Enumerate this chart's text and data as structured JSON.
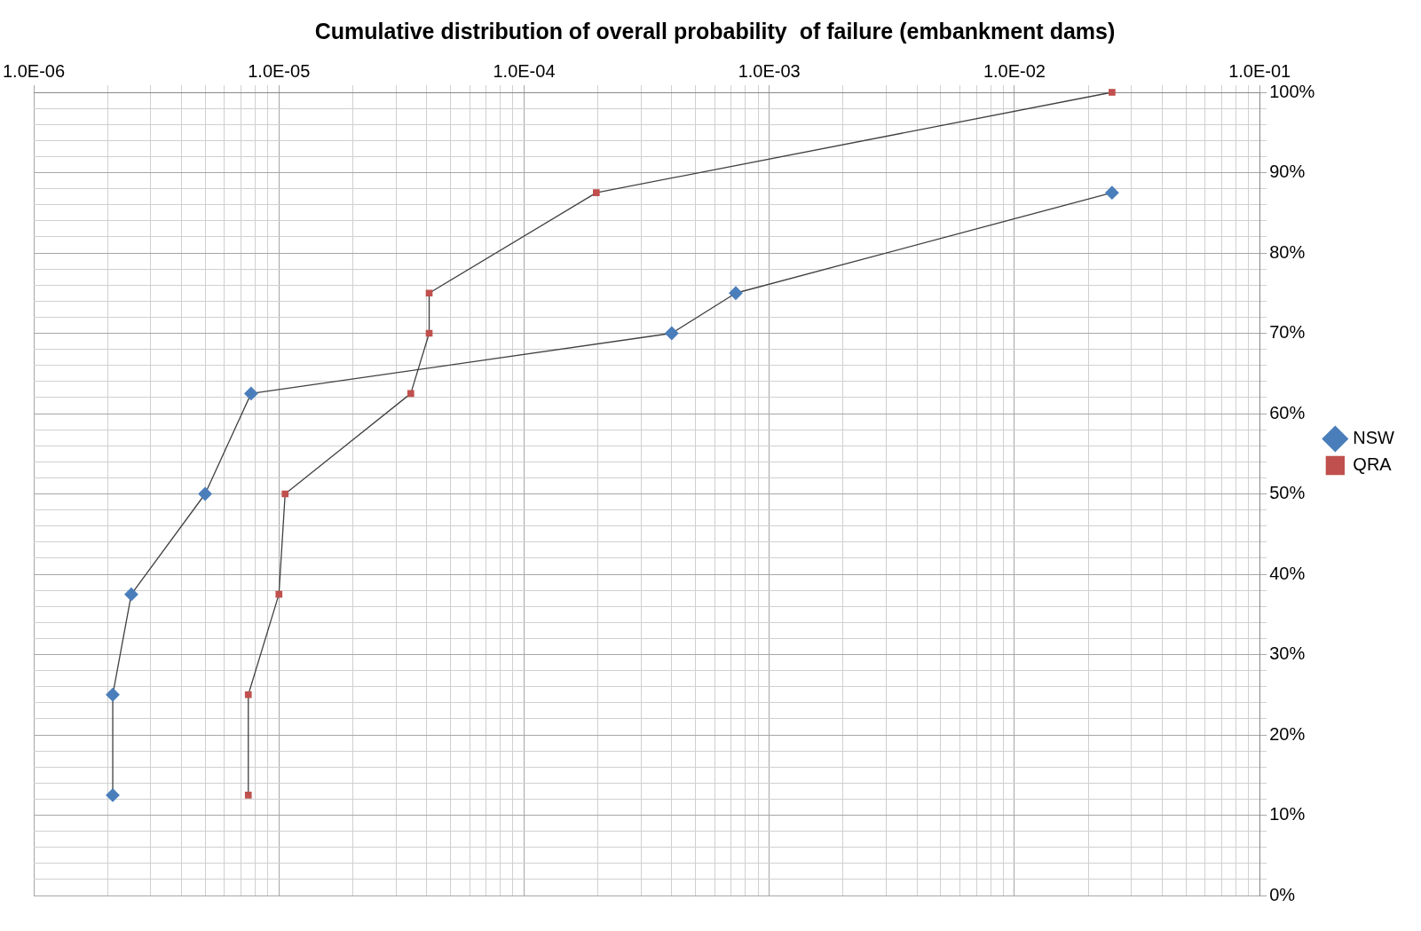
{
  "chart_data": {
    "type": "line",
    "title": "Cumulative distribution of overall probability  of failure (embankment dams)",
    "log": "x",
    "grid": true,
    "legend": "right",
    "line_style": "solid",
    "xlim": [
      1e-06,
      0.1
    ],
    "xticks": [
      {
        "value": 1e-06,
        "label": "1.0E-06"
      },
      {
        "value": 2e-06,
        "label": null
      },
      {
        "value": 3e-06,
        "label": null
      },
      {
        "value": 4e-06,
        "label": null
      },
      {
        "value": 5e-06,
        "label": null
      },
      {
        "value": 6e-06,
        "label": null
      },
      {
        "value": 7e-06,
        "label": null
      },
      {
        "value": 8e-06,
        "label": null
      },
      {
        "value": 9e-06,
        "label": null
      },
      {
        "value": 1e-05,
        "label": "1.0E-05"
      },
      {
        "value": 2e-05,
        "label": null
      },
      {
        "value": 3e-05,
        "label": null
      },
      {
        "value": 4e-05,
        "label": null
      },
      {
        "value": 5e-05,
        "label": null
      },
      {
        "value": 6e-05,
        "label": null
      },
      {
        "value": 7e-05,
        "label": null
      },
      {
        "value": 8e-05,
        "label": null
      },
      {
        "value": 9e-05,
        "label": null
      },
      {
        "value": 0.0001,
        "label": "1.0E-04"
      },
      {
        "value": 0.0002,
        "label": null
      },
      {
        "value": 0.0003,
        "label": null
      },
      {
        "value": 0.0004,
        "label": null
      },
      {
        "value": 0.0005,
        "label": null
      },
      {
        "value": 0.0006,
        "label": null
      },
      {
        "value": 0.0007,
        "label": null
      },
      {
        "value": 0.0008,
        "label": null
      },
      {
        "value": 0.0009,
        "label": null
      },
      {
        "value": 0.001,
        "label": "1.0E-03"
      },
      {
        "value": 0.002,
        "label": null
      },
      {
        "value": 0.003,
        "label": null
      },
      {
        "value": 0.004,
        "label": null
      },
      {
        "value": 0.005,
        "label": null
      },
      {
        "value": 0.006,
        "label": null
      },
      {
        "value": 0.007,
        "label": null
      },
      {
        "value": 0.008,
        "label": null
      },
      {
        "value": 0.009,
        "label": null
      },
      {
        "value": 0.01,
        "label": "1.0E-02"
      },
      {
        "value": 0.02,
        "label": null
      },
      {
        "value": 0.03,
        "label": null
      },
      {
        "value": 0.04,
        "label": null
      },
      {
        "value": 0.05,
        "label": null
      },
      {
        "value": 0.06,
        "label": null
      },
      {
        "value": 0.07,
        "label": null
      },
      {
        "value": 0.08,
        "label": null
      },
      {
        "value": 0.09,
        "label": null
      },
      {
        "value": 0.1,
        "label": "1.0E-01"
      }
    ],
    "ylim": [
      0,
      100
    ],
    "yticks": [
      {
        "value": 0,
        "label": "0%"
      },
      {
        "value": 2,
        "label": null
      },
      {
        "value": 4,
        "label": null
      },
      {
        "value": 6,
        "label": null
      },
      {
        "value": 8,
        "label": null
      },
      {
        "value": 10,
        "label": "10%"
      },
      {
        "value": 12,
        "label": null
      },
      {
        "value": 14,
        "label": null
      },
      {
        "value": 16,
        "label": null
      },
      {
        "value": 18,
        "label": null
      },
      {
        "value": 20,
        "label": "20%"
      },
      {
        "value": 22,
        "label": null
      },
      {
        "value": 24,
        "label": null
      },
      {
        "value": 26,
        "label": null
      },
      {
        "value": 28,
        "label": null
      },
      {
        "value": 30,
        "label": "30%"
      },
      {
        "value": 32,
        "label": null
      },
      {
        "value": 34,
        "label": null
      },
      {
        "value": 36,
        "label": null
      },
      {
        "value": 38,
        "label": null
      },
      {
        "value": 40,
        "label": "40%"
      },
      {
        "value": 42,
        "label": null
      },
      {
        "value": 44,
        "label": null
      },
      {
        "value": 46,
        "label": null
      },
      {
        "value": 48,
        "label": null
      },
      {
        "value": 50,
        "label": "50%"
      },
      {
        "value": 52,
        "label": null
      },
      {
        "value": 54,
        "label": null
      },
      {
        "value": 56,
        "label": null
      },
      {
        "value": 58,
        "label": null
      },
      {
        "value": 60,
        "label": "60%"
      },
      {
        "value": 62,
        "label": null
      },
      {
        "value": 64,
        "label": null
      },
      {
        "value": 66,
        "label": null
      },
      {
        "value": 68,
        "label": null
      },
      {
        "value": 70,
        "label": "70%"
      },
      {
        "value": 72,
        "label": null
      },
      {
        "value": 74,
        "label": null
      },
      {
        "value": 76,
        "label": null
      },
      {
        "value": 78,
        "label": null
      },
      {
        "value": 80,
        "label": "80%"
      },
      {
        "value": 82,
        "label": null
      },
      {
        "value": 84,
        "label": null
      },
      {
        "value": 86,
        "label": null
      },
      {
        "value": 88,
        "label": null
      },
      {
        "value": 90,
        "label": "90%"
      },
      {
        "value": 92,
        "label": null
      },
      {
        "value": 94,
        "label": null
      },
      {
        "value": 96,
        "label": null
      },
      {
        "value": 98,
        "label": null
      },
      {
        "value": 100,
        "label": "100%"
      }
    ],
    "series": [
      {
        "name": "NSW",
        "color": "#4a7ebb",
        "marker": "diamond",
        "x": [
          2.1e-06,
          2.1e-06,
          2.5e-06,
          5e-06,
          7.7e-06,
          0.0004,
          0.00073,
          0.025
        ],
        "values": [
          12.5,
          25,
          37.5,
          50,
          62.5,
          70,
          75,
          87.5
        ]
      },
      {
        "name": "QRA",
        "color": "#c0504d",
        "marker": "square",
        "x": [
          7.5e-06,
          7.5e-06,
          1e-05,
          1.06e-05,
          3.45e-05,
          4.1e-05,
          4.1e-05,
          0.000197,
          0.025
        ],
        "values": [
          12.5,
          25,
          37.5,
          50,
          62.5,
          70,
          75,
          87.5,
          100
        ]
      }
    ]
  }
}
